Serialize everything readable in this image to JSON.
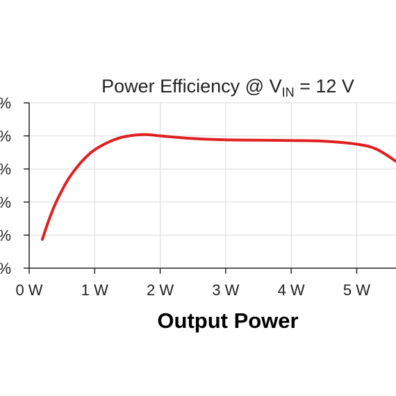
{
  "chart_data": {
    "type": "line",
    "title": {
      "main": "Power Efficiency @ V",
      "subscript": "IN",
      "suffix": " = 12 V"
    },
    "xlabel": "Output Power",
    "ylabel": "",
    "x_ticks": [
      0,
      1,
      2,
      3,
      4,
      5
    ],
    "x_tick_labels": [
      "0 W",
      "1 W",
      "2 W",
      "3 W",
      "4 W",
      "5 W"
    ],
    "y_ticks": [
      0,
      1,
      2,
      3,
      4,
      5
    ],
    "y_tick_labels": [
      "%",
      "%",
      "%",
      "%",
      "%",
      "%"
    ],
    "xlim": [
      0,
      5.6
    ],
    "ylim": [
      0,
      5
    ],
    "grid": true,
    "series_color": "#e02020",
    "series": [
      {
        "x": [
          0.2,
          0.3,
          0.4,
          0.5,
          0.6,
          0.7,
          0.8,
          0.9,
          1.0,
          1.2,
          1.4,
          1.6,
          1.8,
          2.0,
          2.5,
          3.0,
          3.5,
          4.0,
          4.5,
          5.0,
          5.3,
          5.6
        ],
        "y": [
          0.87,
          1.45,
          1.95,
          2.35,
          2.7,
          2.98,
          3.22,
          3.42,
          3.58,
          3.8,
          3.95,
          4.02,
          4.04,
          4.0,
          3.92,
          3.88,
          3.87,
          3.86,
          3.84,
          3.75,
          3.6,
          3.23
        ]
      }
    ]
  }
}
